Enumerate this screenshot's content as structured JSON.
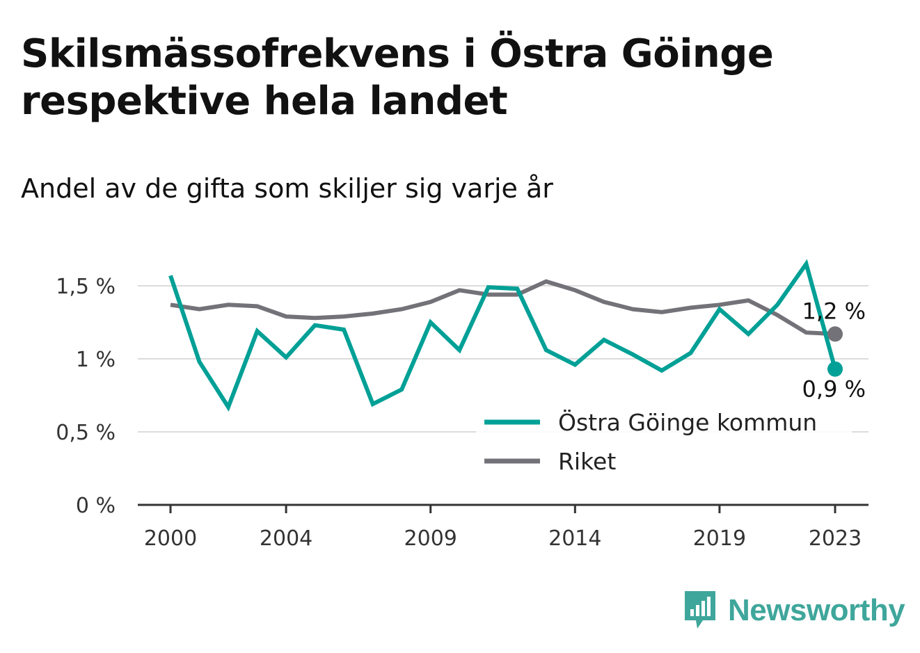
{
  "header": {
    "title": "Skilsmässofrekvens i Östra Göinge respektive hela landet",
    "subtitle": "Andel av de gifta som skiljer sig varje år"
  },
  "brand": {
    "name": "Newsworthy",
    "icon": "newsworthy-logo-icon",
    "color": "#3fa69b"
  },
  "chart_data": {
    "type": "line",
    "title": "Skilsmässofrekvens i Östra Göinge respektive hela landet",
    "subtitle": "Andel av de gifta som skiljer sig varje år",
    "x": [
      2000,
      2001,
      2002,
      2003,
      2004,
      2005,
      2006,
      2007,
      2008,
      2009,
      2010,
      2011,
      2012,
      2013,
      2014,
      2015,
      2016,
      2017,
      2018,
      2019,
      2020,
      2021,
      2022,
      2023
    ],
    "x_tick_labels": [
      "2000",
      "2004",
      "2009",
      "2014",
      "2019",
      "2023"
    ],
    "x_tick_values": [
      2000,
      2004,
      2009,
      2014,
      2019,
      2023
    ],
    "y_tick_labels": [
      "0 %",
      "0,5 %",
      "1 %",
      "1,5 %"
    ],
    "y_tick_values": [
      0,
      0.5,
      1.0,
      1.5
    ],
    "ylim": [
      0,
      1.6
    ],
    "xlim": [
      2000,
      2023
    ],
    "grid": true,
    "legend_position": "bottom-right",
    "series": [
      {
        "name": "Östra Göinge kommun",
        "color": "#00a096",
        "values": [
          1.57,
          0.98,
          0.67,
          1.19,
          1.01,
          1.23,
          1.2,
          0.69,
          0.79,
          1.25,
          1.06,
          1.49,
          1.48,
          1.06,
          0.96,
          1.13,
          1.03,
          0.92,
          1.04,
          1.34,
          1.17,
          1.37,
          1.65,
          0.93
        ],
        "end_label": "0,9 %"
      },
      {
        "name": "Riket",
        "color": "#737278",
        "values": [
          1.37,
          1.34,
          1.37,
          1.36,
          1.29,
          1.28,
          1.29,
          1.31,
          1.34,
          1.39,
          1.47,
          1.44,
          1.44,
          1.53,
          1.47,
          1.39,
          1.34,
          1.32,
          1.35,
          1.37,
          1.4,
          1.3,
          1.18,
          1.17
        ],
        "end_label": "1,2 %"
      }
    ]
  }
}
